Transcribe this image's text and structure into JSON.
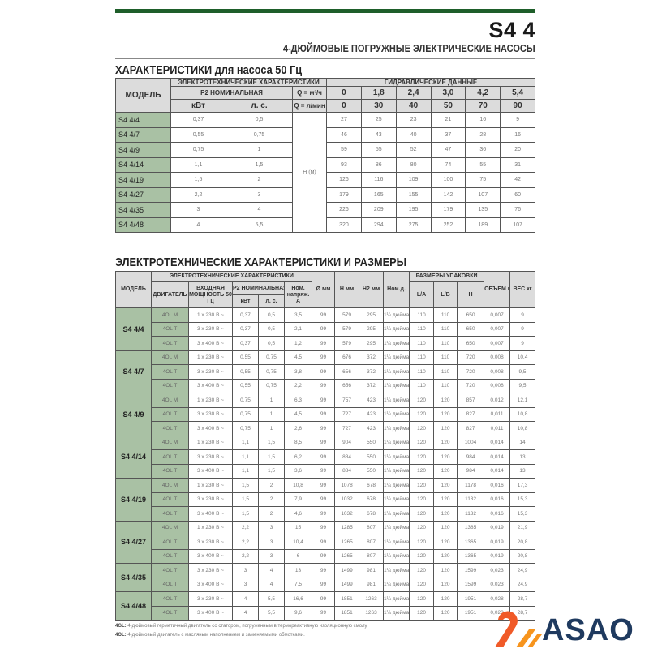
{
  "header": {
    "code": "S4 4",
    "subtitle": "4-ДЮЙМОВЫЕ ПОГРУЖНЫЕ ЭЛЕКТРИЧЕСКИЕ НАСОСЫ",
    "accent_color": "#1e5e2a"
  },
  "table1": {
    "title": "ХАРАКТЕРИСТИКИ для насоса 50 Гц",
    "h_model": "МОДЕЛЬ",
    "h_electro": "ЭЛЕКТРОТЕХНИЧЕСКИЕ ХАРАКТЕРИСТИКИ",
    "h_hydro": "ГИДРАВЛИЧЕСКИЕ ДАННЫЕ",
    "h_p2": "P2 НОМИНАЛЬНАЯ",
    "h_kw": "кВт",
    "h_hp": "л. с.",
    "h_q_m3": "Q = м³/ч",
    "h_q_l": "Q = л/мин",
    "q_m3": [
      "0",
      "1,8",
      "2,4",
      "3,0",
      "4,2",
      "5,4"
    ],
    "q_l": [
      "0",
      "30",
      "40",
      "50",
      "70",
      "90"
    ],
    "h_label": "H (м)",
    "rows": [
      {
        "model": "S4 4/4",
        "kw": "0,37",
        "hp": "0,5",
        "h": [
          "27",
          "25",
          "23",
          "21",
          "16",
          "9"
        ]
      },
      {
        "model": "S4 4/7",
        "kw": "0,55",
        "hp": "0,75",
        "h": [
          "46",
          "43",
          "40",
          "37",
          "28",
          "16"
        ]
      },
      {
        "model": "S4 4/9",
        "kw": "0,75",
        "hp": "1",
        "h": [
          "59",
          "55",
          "52",
          "47",
          "36",
          "20"
        ]
      },
      {
        "model": "S4 4/14",
        "kw": "1,1",
        "hp": "1,5",
        "h": [
          "93",
          "86",
          "80",
          "74",
          "55",
          "31"
        ]
      },
      {
        "model": "S4 4/19",
        "kw": "1,5",
        "hp": "2",
        "h": [
          "126",
          "116",
          "109",
          "100",
          "75",
          "42"
        ]
      },
      {
        "model": "S4 4/27",
        "kw": "2,2",
        "hp": "3",
        "h": [
          "179",
          "165",
          "155",
          "142",
          "107",
          "60"
        ]
      },
      {
        "model": "S4 4/35",
        "kw": "3",
        "hp": "4",
        "h": [
          "226",
          "209",
          "195",
          "179",
          "135",
          "76"
        ]
      },
      {
        "model": "S4 4/48",
        "kw": "4",
        "hp": "5,5",
        "h": [
          "320",
          "294",
          "275",
          "252",
          "189",
          "107"
        ]
      }
    ]
  },
  "table2": {
    "title": "ЭЛЕКТРОТЕХНИЧЕСКИЕ ХАРАКТЕРИСТИКИ И РАЗМЕРЫ",
    "h_model": "МОДЕЛЬ",
    "h_electro": "ЭЛЕКТРОТЕХНИЧЕСКИЕ ХАРАКТЕРИСТИКИ",
    "h_motor": "ДВИГАТЕЛЬ",
    "h_input": "ВХОДНАЯ МОЩНОСТЬ 50 Гц",
    "h_p2": "P2 НОМИНАЛЬНАЯ",
    "h_kw": "кВт",
    "h_hp": "л. с.",
    "h_amp": "Ном. напряж. А",
    "h_dia": "Ø мм",
    "h_h": "H мм",
    "h_h2": "H2 мм",
    "h_nom": "Ном.д.",
    "h_pack": "РАЗМЕРЫ УПАКОВКИ",
    "h_la": "L/A",
    "h_lb": "L/B",
    "h_ph": "H",
    "h_vol": "ОБЪЕМ м³",
    "h_wt": "ВЕС кг",
    "groups": [
      {
        "model": "S4 4/4",
        "rows": [
          [
            "4OL M",
            "1 x 230 В ~",
            "0,37",
            "0,5",
            "3,5",
            "99",
            "579",
            "295",
            "1¼ дюйма",
            "110",
            "110",
            "650",
            "0,007",
            "9"
          ],
          [
            "4OL T",
            "3 x 230 В ~",
            "0,37",
            "0,5",
            "2,1",
            "99",
            "579",
            "295",
            "1¼ дюйма",
            "110",
            "110",
            "650",
            "0,007",
            "9"
          ],
          [
            "4OL T",
            "3 x 400 В ~",
            "0,37",
            "0,5",
            "1,2",
            "99",
            "579",
            "295",
            "1¼ дюйма",
            "110",
            "110",
            "650",
            "0,007",
            "9"
          ]
        ]
      },
      {
        "model": "S4 4/7",
        "rows": [
          [
            "4OL M",
            "1 x 230 В ~",
            "0,55",
            "0,75",
            "4,5",
            "99",
            "676",
            "372",
            "1¼ дюйма",
            "110",
            "110",
            "720",
            "0,008",
            "10,4"
          ],
          [
            "4OL T",
            "3 x 230 В ~",
            "0,55",
            "0,75",
            "3,8",
            "99",
            "656",
            "372",
            "1¼ дюйма",
            "110",
            "110",
            "720",
            "0,008",
            "9,5"
          ],
          [
            "4OL T",
            "3 x 400 В ~",
            "0,55",
            "0,75",
            "2,2",
            "99",
            "656",
            "372",
            "1¼ дюйма",
            "110",
            "110",
            "720",
            "0,008",
            "9,5"
          ]
        ]
      },
      {
        "model": "S4 4/9",
        "rows": [
          [
            "4OL M",
            "1 x 230 В ~",
            "0,75",
            "1",
            "6,3",
            "99",
            "757",
            "423",
            "1¼ дюйма",
            "120",
            "120",
            "857",
            "0,012",
            "12,1"
          ],
          [
            "4OL T",
            "3 x 230 В ~",
            "0,75",
            "1",
            "4,5",
            "99",
            "727",
            "423",
            "1¼ дюйма",
            "120",
            "120",
            "827",
            "0,011",
            "10,8"
          ],
          [
            "4OL T",
            "3 x 400 В ~",
            "0,75",
            "1",
            "2,6",
            "99",
            "727",
            "423",
            "1¼ дюйма",
            "120",
            "120",
            "827",
            "0,011",
            "10,8"
          ]
        ]
      },
      {
        "model": "S4 4/14",
        "rows": [
          [
            "4OL M",
            "1 x 230 В ~",
            "1,1",
            "1,5",
            "8,5",
            "99",
            "904",
            "550",
            "1¼ дюйма",
            "120",
            "120",
            "1004",
            "0,014",
            "14"
          ],
          [
            "4OL T",
            "3 x 230 В ~",
            "1,1",
            "1,5",
            "6,2",
            "99",
            "884",
            "550",
            "1¼ дюйма",
            "120",
            "120",
            "984",
            "0,014",
            "13"
          ],
          [
            "4OL T",
            "3 x 400 В ~",
            "1,1",
            "1,5",
            "3,6",
            "99",
            "884",
            "550",
            "1¼ дюйма",
            "120",
            "120",
            "984",
            "0,014",
            "13"
          ]
        ]
      },
      {
        "model": "S4 4/19",
        "rows": [
          [
            "4OL M",
            "1 x 230 В ~",
            "1,5",
            "2",
            "10,8",
            "99",
            "1078",
            "678",
            "1¼ дюйма",
            "120",
            "120",
            "1178",
            "0,016",
            "17,3"
          ],
          [
            "4OL T",
            "3 x 230 В ~",
            "1,5",
            "2",
            "7,9",
            "99",
            "1032",
            "678",
            "1¼ дюйма",
            "120",
            "120",
            "1132",
            "0,016",
            "15,3"
          ],
          [
            "4OL T",
            "3 x 400 В ~",
            "1,5",
            "2",
            "4,6",
            "99",
            "1032",
            "678",
            "1¼ дюйма",
            "120",
            "120",
            "1132",
            "0,016",
            "15,3"
          ]
        ]
      },
      {
        "model": "S4 4/27",
        "rows": [
          [
            "4OL M",
            "1 x 230 В ~",
            "2,2",
            "3",
            "15",
            "99",
            "1285",
            "807",
            "1¼ дюйма",
            "120",
            "120",
            "1385",
            "0,019",
            "21,9"
          ],
          [
            "4OL T",
            "3 x 230 В ~",
            "2,2",
            "3",
            "10,4",
            "99",
            "1265",
            "807",
            "1¼ дюйма",
            "120",
            "120",
            "1365",
            "0,019",
            "20,8"
          ],
          [
            "4OL T",
            "3 x 400 В ~",
            "2,2",
            "3",
            "6",
            "99",
            "1265",
            "807",
            "1¼ дюйма",
            "120",
            "120",
            "1365",
            "0,019",
            "20,8"
          ]
        ]
      },
      {
        "model": "S4 4/35",
        "rows": [
          [
            "4OL T",
            "3 x 230 В ~",
            "3",
            "4",
            "13",
            "99",
            "1499",
            "981",
            "1¼ дюйма",
            "120",
            "120",
            "1599",
            "0,023",
            "24,9"
          ],
          [
            "4OL T",
            "3 x 400 В ~",
            "3",
            "4",
            "7,5",
            "99",
            "1499",
            "981",
            "1¼ дюйма",
            "120",
            "120",
            "1599",
            "0,023",
            "24,9"
          ]
        ]
      },
      {
        "model": "S4 4/48",
        "rows": [
          [
            "4OL T",
            "3 x 230 В ~",
            "4",
            "5,5",
            "16,6",
            "99",
            "1851",
            "1263",
            "1¼ дюйма",
            "120",
            "120",
            "1951",
            "0,028",
            "28,7"
          ],
          [
            "4OL T",
            "3 x 400 В ~",
            "4",
            "5,5",
            "9,6",
            "99",
            "1851",
            "1263",
            "1¼ дюйма",
            "120",
            "120",
            "1951",
            "0,028",
            "28,7"
          ]
        ]
      }
    ]
  },
  "footnotes": [
    {
      "key": "4GL:",
      "text": "4-дюймовый герметичный двигатель со статором, погруженным в термореактивную изоляционную смолу."
    },
    {
      "key": "4OL:",
      "text": "4-дюймовый двигатель с масляным наполнением и заменяемыми обмотками."
    }
  ],
  "logo": {
    "text": "ASAO",
    "colors": [
      "#f05a28",
      "#f7941d",
      "#1f3a5f"
    ]
  }
}
